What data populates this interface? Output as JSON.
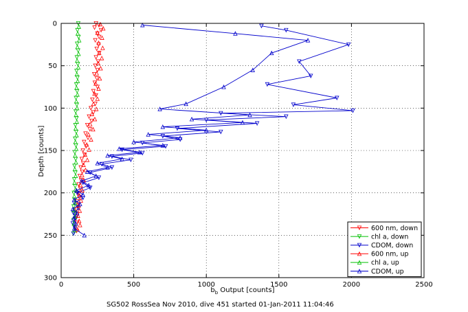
{
  "chart_data": {
    "type": "scatter",
    "title": "",
    "xlabel_base": "b",
    "xlabel_sub": "b",
    "xlabel_rest": " Output [counts]",
    "ylabel": "Depth [counts]",
    "caption": "SG502 RossSea Nov 2010, dive 451 started 01-Jan-2011 11:04:46",
    "xlim": [
      0,
      2500
    ],
    "ylim": [
      0,
      300
    ],
    "y_reversed": true,
    "grid": true,
    "legend_position": "bottom-right",
    "x_ticks": [
      "0",
      "500",
      "1000",
      "1500",
      "2000",
      "2500"
    ],
    "y_ticks": [
      "0",
      "50",
      "100",
      "150",
      "200",
      "250",
      "300"
    ],
    "series": [
      {
        "name": "600 nm, down",
        "color": "#ff0000",
        "marker": "triangle-down",
        "line": false,
        "points": [
          [
            240,
            0
          ],
          [
            260,
            2
          ],
          [
            230,
            5
          ],
          [
            275,
            8
          ],
          [
            250,
            12
          ],
          [
            262,
            16
          ],
          [
            235,
            20
          ],
          [
            258,
            25
          ],
          [
            245,
            30
          ],
          [
            262,
            35
          ],
          [
            240,
            40
          ],
          [
            255,
            45
          ],
          [
            235,
            50
          ],
          [
            250,
            55
          ],
          [
            228,
            60
          ],
          [
            246,
            65
          ],
          [
            232,
            70
          ],
          [
            250,
            75
          ],
          [
            222,
            80
          ],
          [
            240,
            85
          ],
          [
            215,
            90
          ],
          [
            235,
            95
          ],
          [
            205,
            100
          ],
          [
            222,
            105
          ],
          [
            192,
            110
          ],
          [
            210,
            115
          ],
          [
            180,
            120
          ],
          [
            198,
            125
          ],
          [
            168,
            130
          ],
          [
            185,
            135
          ],
          [
            158,
            140
          ],
          [
            172,
            145
          ],
          [
            150,
            150
          ],
          [
            162,
            155
          ],
          [
            142,
            160
          ],
          [
            152,
            165
          ],
          [
            135,
            170
          ],
          [
            145,
            175
          ],
          [
            128,
            180
          ],
          [
            138,
            185
          ],
          [
            120,
            190
          ],
          [
            132,
            195
          ],
          [
            115,
            200
          ],
          [
            125,
            205
          ],
          [
            110,
            210
          ],
          [
            118,
            215
          ],
          [
            106,
            220
          ],
          [
            112,
            225
          ],
          [
            102,
            230
          ],
          [
            110,
            235
          ],
          [
            100,
            240
          ],
          [
            106,
            245
          ]
        ]
      },
      {
        "name": "chl a, down",
        "color": "#00c000",
        "marker": "triangle-down",
        "line": false,
        "points": [
          [
            118,
            0
          ],
          [
            112,
            8
          ],
          [
            120,
            16
          ],
          [
            110,
            24
          ],
          [
            117,
            32
          ],
          [
            108,
            40
          ],
          [
            115,
            48
          ],
          [
            106,
            56
          ],
          [
            112,
            64
          ],
          [
            104,
            72
          ],
          [
            110,
            80
          ],
          [
            102,
            88
          ],
          [
            108,
            96
          ],
          [
            100,
            104
          ],
          [
            106,
            112
          ],
          [
            98,
            120
          ],
          [
            104,
            128
          ],
          [
            96,
            136
          ],
          [
            102,
            144
          ],
          [
            94,
            152
          ],
          [
            100,
            160
          ],
          [
            92,
            168
          ],
          [
            98,
            176
          ],
          [
            90,
            184
          ],
          [
            96,
            192
          ],
          [
            88,
            200
          ],
          [
            94,
            208
          ],
          [
            86,
            216
          ],
          [
            92,
            224
          ],
          [
            86,
            232
          ],
          [
            90,
            240
          ],
          [
            84,
            248
          ]
        ]
      },
      {
        "name": "CDOM, down",
        "color": "#0000cc",
        "marker": "triangle-down",
        "line": true,
        "points": [
          [
            1380,
            3
          ],
          [
            1550,
            8
          ],
          [
            1980,
            25
          ],
          [
            1640,
            45
          ],
          [
            1720,
            62
          ],
          [
            1420,
            72
          ],
          [
            1900,
            88
          ],
          [
            1600,
            96
          ],
          [
            2010,
            103
          ],
          [
            1100,
            106
          ],
          [
            1550,
            110
          ],
          [
            1000,
            114
          ],
          [
            1350,
            118
          ],
          [
            800,
            124
          ],
          [
            1100,
            128
          ],
          [
            700,
            133
          ],
          [
            820,
            137
          ],
          [
            560,
            141
          ],
          [
            720,
            145
          ],
          [
            420,
            149
          ],
          [
            560,
            153
          ],
          [
            350,
            157
          ],
          [
            480,
            161
          ],
          [
            280,
            166
          ],
          [
            350,
            170
          ],
          [
            200,
            176
          ],
          [
            260,
            182
          ],
          [
            150,
            188
          ],
          [
            200,
            194
          ],
          [
            110,
            200
          ],
          [
            150,
            206
          ],
          [
            90,
            212
          ],
          [
            120,
            218
          ],
          [
            85,
            224
          ],
          [
            100,
            230
          ],
          [
            80,
            236
          ],
          [
            95,
            242
          ],
          [
            85,
            248
          ]
        ]
      },
      {
        "name": "600 nm, up",
        "color": "#ff0000",
        "marker": "triangle-up",
        "line": false,
        "points": [
          [
            270,
            1
          ],
          [
            290,
            6
          ],
          [
            250,
            11
          ],
          [
            282,
            17
          ],
          [
            258,
            23
          ],
          [
            286,
            29
          ],
          [
            262,
            35
          ],
          [
            280,
            41
          ],
          [
            255,
            47
          ],
          [
            272,
            53
          ],
          [
            245,
            59
          ],
          [
            266,
            65
          ],
          [
            238,
            71
          ],
          [
            258,
            77
          ],
          [
            230,
            83
          ],
          [
            250,
            89
          ],
          [
            222,
            95
          ],
          [
            242,
            101
          ],
          [
            212,
            107
          ],
          [
            232,
            113
          ],
          [
            200,
            119
          ],
          [
            220,
            125
          ],
          [
            188,
            131
          ],
          [
            206,
            137
          ],
          [
            176,
            143
          ],
          [
            192,
            149
          ],
          [
            165,
            155
          ],
          [
            180,
            161
          ],
          [
            154,
            167
          ],
          [
            168,
            173
          ],
          [
            144,
            179
          ],
          [
            156,
            185
          ],
          [
            134,
            191
          ],
          [
            146,
            197
          ],
          [
            126,
            203
          ],
          [
            136,
            209
          ],
          [
            120,
            215
          ],
          [
            128,
            221
          ],
          [
            116,
            227
          ],
          [
            124,
            233
          ],
          [
            130,
            238
          ],
          [
            112,
            243
          ]
        ]
      },
      {
        "name": "chl a, up",
        "color": "#00c000",
        "marker": "triangle-up",
        "line": false,
        "points": [
          [
            122,
            4
          ],
          [
            114,
            12
          ],
          [
            124,
            20
          ],
          [
            112,
            28
          ],
          [
            120,
            36
          ],
          [
            110,
            44
          ],
          [
            118,
            52
          ],
          [
            108,
            60
          ],
          [
            114,
            68
          ],
          [
            106,
            76
          ],
          [
            112,
            84
          ],
          [
            104,
            92
          ],
          [
            110,
            100
          ],
          [
            102,
            108
          ],
          [
            108,
            116
          ],
          [
            100,
            124
          ],
          [
            106,
            132
          ],
          [
            98,
            140
          ],
          [
            104,
            148
          ],
          [
            96,
            156
          ],
          [
            102,
            164
          ],
          [
            94,
            172
          ],
          [
            100,
            180
          ],
          [
            92,
            188
          ],
          [
            98,
            196
          ],
          [
            90,
            204
          ],
          [
            96,
            212
          ],
          [
            88,
            220
          ],
          [
            94,
            228
          ],
          [
            88,
            236
          ],
          [
            92,
            244
          ]
        ]
      },
      {
        "name": "CDOM, up",
        "color": "#0000cc",
        "marker": "triangle-up",
        "line": true,
        "points": [
          [
            560,
            2
          ],
          [
            1200,
            12
          ],
          [
            1700,
            20
          ],
          [
            1450,
            35
          ],
          [
            1320,
            55
          ],
          [
            1120,
            75
          ],
          [
            860,
            95
          ],
          [
            680,
            101
          ],
          [
            1300,
            108
          ],
          [
            900,
            113
          ],
          [
            1250,
            117
          ],
          [
            700,
            122
          ],
          [
            1000,
            126
          ],
          [
            600,
            131
          ],
          [
            820,
            135
          ],
          [
            500,
            140
          ],
          [
            700,
            144
          ],
          [
            400,
            148
          ],
          [
            540,
            152
          ],
          [
            320,
            156
          ],
          [
            420,
            160
          ],
          [
            250,
            165
          ],
          [
            320,
            170
          ],
          [
            180,
            175
          ],
          [
            240,
            180
          ],
          [
            140,
            186
          ],
          [
            190,
            191
          ],
          [
            105,
            197
          ],
          [
            150,
            202
          ],
          [
            90,
            208
          ],
          [
            130,
            213
          ],
          [
            80,
            219
          ],
          [
            110,
            224
          ],
          [
            85,
            230
          ],
          [
            100,
            236
          ],
          [
            90,
            242
          ],
          [
            160,
            250
          ]
        ]
      }
    ]
  }
}
